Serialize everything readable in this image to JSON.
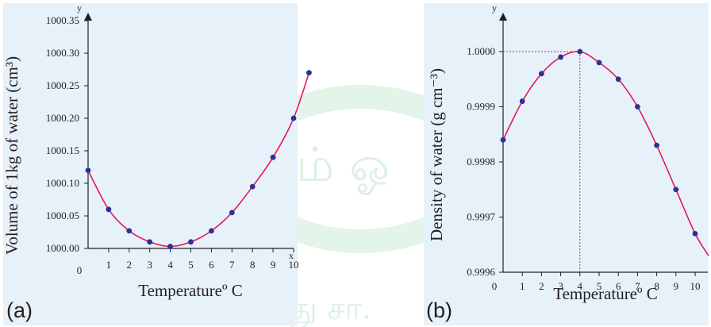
{
  "colors": {
    "panel_bg": "#e6f1fa",
    "curve": "#e8175d",
    "marker": "#2e3192",
    "guide": "#e8175d",
    "axis": "#231f20",
    "watermark": "#8fd3a4"
  },
  "chart_data": [
    {
      "panel": "(a)",
      "type": "line",
      "xlabel": "Temperatureº C",
      "ylabel": "Volume of 1kg of water (cm³)",
      "x_axis_letter": "x",
      "y_axis_letter": "y",
      "xlim": [
        0,
        11
      ],
      "ylim": [
        1000.0,
        1000.4
      ],
      "x_ticks": [
        "0",
        "1",
        "2",
        "3",
        "4",
        "5",
        "6",
        "7",
        "8",
        "9",
        "10"
      ],
      "y_ticks": [
        "1000.00",
        "1000.05",
        "1000.10",
        "1000.15",
        "1000.20",
        "1000.25",
        "1000.30",
        "1000.35"
      ],
      "y_tick_values": [
        1000.0,
        1000.05,
        1000.1,
        1000.15,
        1000.2,
        1000.25,
        1000.3,
        1000.35
      ],
      "grid": false,
      "legend": "none",
      "points": [
        {
          "x": 0,
          "y": 1000.12
        },
        {
          "x": 1,
          "y": 1000.06
        },
        {
          "x": 2,
          "y": 1000.027
        },
        {
          "x": 3,
          "y": 1000.01
        },
        {
          "x": 4,
          "y": 1000.003
        },
        {
          "x": 5,
          "y": 1000.01
        },
        {
          "x": 6,
          "y": 1000.027
        },
        {
          "x": 7,
          "y": 1000.055
        },
        {
          "x": 8,
          "y": 1000.095
        },
        {
          "x": 9,
          "y": 1000.14
        },
        {
          "x": 10,
          "y": 1000.2
        },
        {
          "x": 10.75,
          "y": 1000.27
        }
      ]
    },
    {
      "panel": "(b)",
      "type": "line",
      "xlabel": "Temperatureº C",
      "ylabel": "Density of water (g cm⁻³)",
      "x_axis_letter": "x",
      "y_axis_letter": "y",
      "xlim": [
        0,
        10.8
      ],
      "ylim": [
        0.9996,
        1.00007
      ],
      "x_ticks": [
        "0",
        "1",
        "2",
        "3",
        "4",
        "5",
        "6",
        "7",
        "8",
        "9",
        "10"
      ],
      "y_ticks": [
        "0.9996",
        "0.9997",
        "0.9998",
        "0.9999",
        "1.0000"
      ],
      "y_tick_values": [
        0.9996,
        0.9997,
        0.9998,
        0.9999,
        1.0
      ],
      "grid": false,
      "legend": "none",
      "max_marker": {
        "x": 4,
        "y": 1.0
      },
      "points": [
        {
          "x": 0,
          "y": 0.99984
        },
        {
          "x": 1,
          "y": 0.99991
        },
        {
          "x": 2,
          "y": 0.99996
        },
        {
          "x": 3,
          "y": 0.99999
        },
        {
          "x": 4,
          "y": 1.0
        },
        {
          "x": 5,
          "y": 0.99998
        },
        {
          "x": 6,
          "y": 0.99995
        },
        {
          "x": 7,
          "y": 0.9999
        },
        {
          "x": 8,
          "y": 0.99983
        },
        {
          "x": 9,
          "y": 0.99975
        },
        {
          "x": 10,
          "y": 0.99967
        }
      ],
      "curve_end": {
        "x": 10.7,
        "y": 0.99963
      }
    }
  ]
}
